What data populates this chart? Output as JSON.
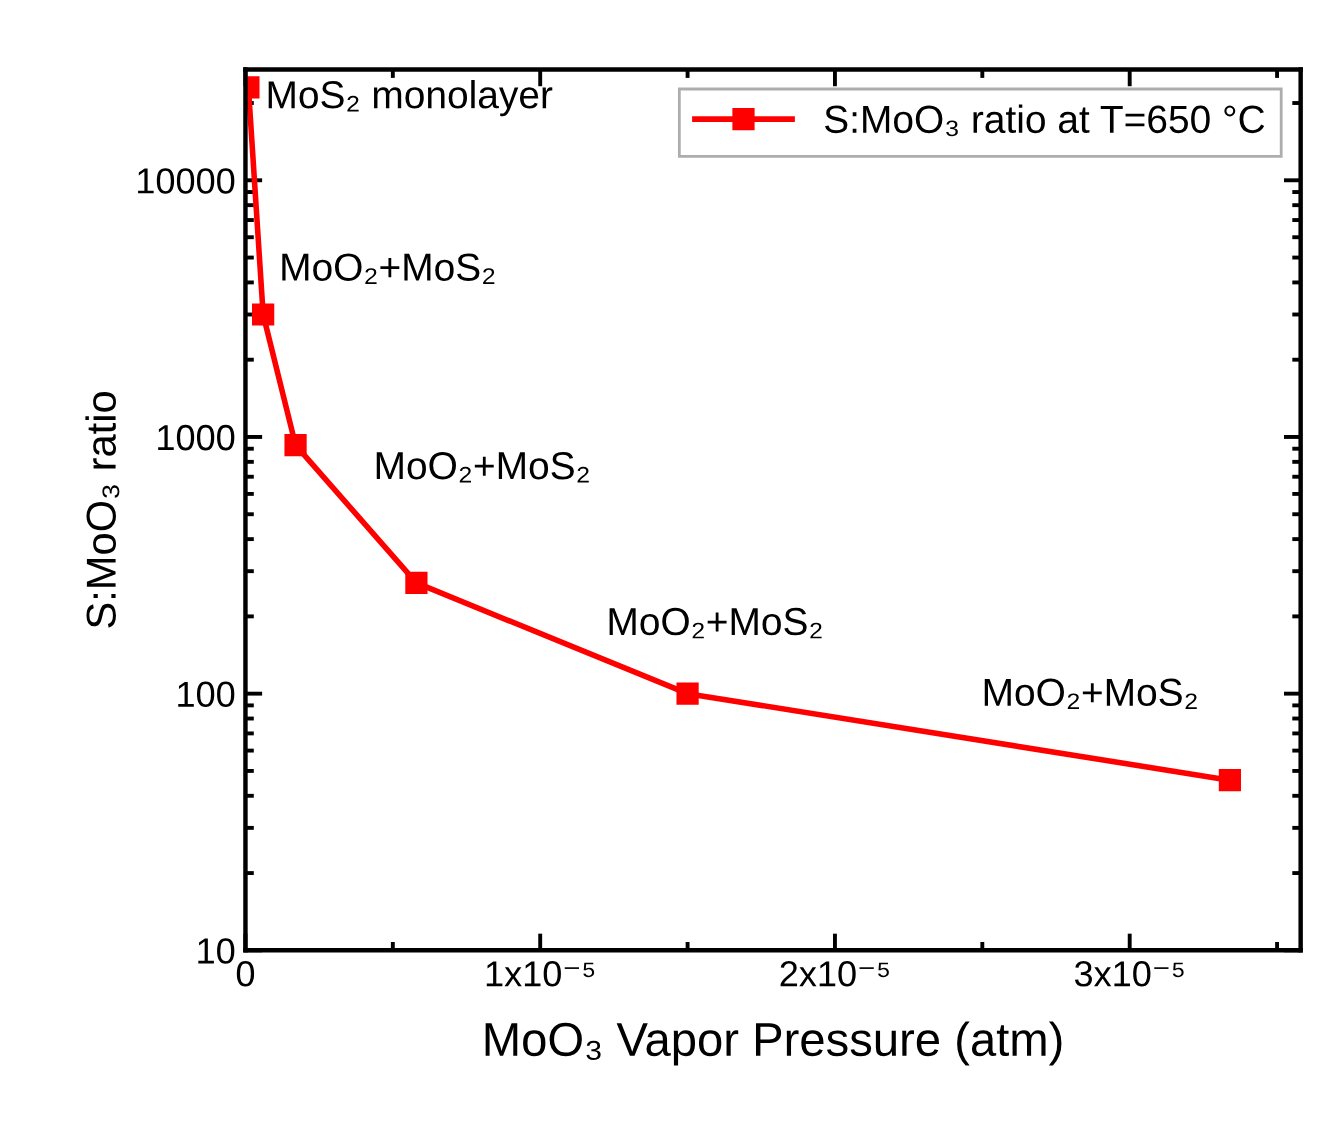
{
  "chart_data": {
    "type": "line",
    "xlabel": "MoO₃ Vapor Pressure (atm)",
    "ylabel": "S:MoO₃ ratio",
    "x": [
      1e-07,
      6e-07,
      1.7e-06,
      5.8e-06,
      1.5e-05,
      3.34e-05
    ],
    "series": [
      {
        "name": "S:MoO₃ ratio at T=650 °C",
        "color": "#ff0000",
        "values": [
          23000,
          3000,
          930,
          270,
          100,
          46
        ]
      }
    ],
    "log": "y",
    "xlim": [
      0,
      3.58e-05
    ],
    "ylim": [
      10,
      27000
    ],
    "xticks": [
      0,
      {
        "value": 1e-05,
        "label": "1x10⁻⁵"
      },
      {
        "value": 2e-05,
        "label": "2x10⁻⁵"
      },
      {
        "value": 3e-05,
        "label": "3x10⁻⁵"
      }
    ],
    "yticks": [
      10,
      100,
      1000,
      10000
    ],
    "marker": "square",
    "line_style": "solid",
    "legend": "top right",
    "grid": false,
    "annotations": [
      {
        "text": "MoS₂ monolayer",
        "x": 6.8e-07,
        "y": 20900
      },
      "MoO₂+MoS₂",
      "MoO₂+MoS₂",
      "MoO₂+MoS₂",
      "MoO₂+MoS₂"
    ]
  }
}
